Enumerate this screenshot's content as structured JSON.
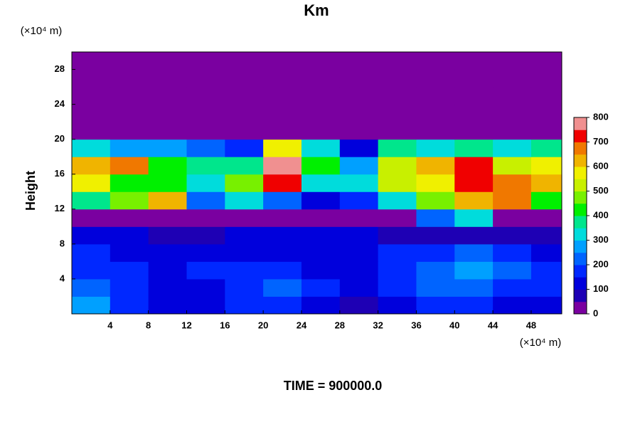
{
  "chart_data": {
    "type": "heatmap",
    "title": "Km",
    "y_label": "Height",
    "y_unit": "(×10⁴ m)",
    "x_unit": "(×10⁴ m)",
    "footer": "TIME = 900000.0",
    "xlim": [
      0,
      51.2
    ],
    "ylim": [
      0,
      30
    ],
    "xticks": [
      4,
      8,
      12,
      16,
      20,
      24,
      28,
      32,
      36,
      40,
      44,
      48
    ],
    "yticks": [
      4,
      8,
      12,
      16,
      20,
      24,
      28
    ],
    "x_edges": [
      0,
      4,
      8,
      12,
      16,
      20,
      24,
      28,
      32,
      36,
      40,
      44,
      48,
      51.2
    ],
    "y_edges": [
      0,
      2,
      4,
      6,
      8,
      10,
      12,
      14,
      16,
      18,
      20,
      22,
      24,
      26,
      28,
      30
    ],
    "z": [
      [
        250,
        150,
        100,
        100,
        150,
        150,
        100,
        50,
        100,
        150,
        150,
        100,
        100
      ],
      [
        200,
        150,
        100,
        100,
        150,
        200,
        150,
        100,
        150,
        200,
        200,
        150,
        150
      ],
      [
        150,
        150,
        100,
        150,
        150,
        150,
        100,
        100,
        150,
        200,
        250,
        200,
        150
      ],
      [
        150,
        100,
        100,
        100,
        100,
        100,
        100,
        100,
        150,
        150,
        200,
        150,
        100
      ],
      [
        100,
        100,
        50,
        50,
        100,
        100,
        100,
        100,
        50,
        50,
        50,
        50,
        50
      ],
      [
        0,
        0,
        0,
        0,
        0,
        0,
        0,
        0,
        0,
        200,
        300,
        0,
        0
      ],
      [
        350,
        450,
        600,
        200,
        300,
        200,
        100,
        150,
        300,
        450,
        600,
        650,
        400
      ],
      [
        550,
        400,
        400,
        300,
        450,
        700,
        300,
        300,
        500,
        550,
        700,
        650,
        600
      ],
      [
        600,
        650,
        400,
        350,
        350,
        750,
        400,
        250,
        500,
        600,
        700,
        500,
        550
      ],
      [
        300,
        250,
        250,
        200,
        150,
        550,
        300,
        100,
        350,
        300,
        350,
        300,
        350
      ],
      [
        0,
        0,
        0,
        0,
        0,
        0,
        0,
        0,
        0,
        0,
        0,
        0,
        0
      ],
      [
        0,
        0,
        0,
        0,
        0,
        0,
        0,
        0,
        0,
        0,
        0,
        0,
        0
      ],
      [
        0,
        0,
        0,
        0,
        0,
        0,
        0,
        0,
        0,
        0,
        0,
        0,
        0
      ],
      [
        0,
        0,
        0,
        0,
        0,
        0,
        0,
        0,
        0,
        0,
        0,
        0,
        0
      ],
      [
        0,
        0,
        0,
        0,
        0,
        0,
        0,
        0,
        0,
        0,
        0,
        0,
        0
      ]
    ],
    "levels": [
      0,
      50,
      100,
      150,
      200,
      250,
      300,
      350,
      400,
      450,
      500,
      550,
      600,
      650,
      700,
      750,
      800
    ],
    "colors": [
      "#7a00a0",
      "#1e00b4",
      "#0000dc",
      "#0028ff",
      "#0064ff",
      "#00a0ff",
      "#00dcdc",
      "#00e68c",
      "#00f000",
      "#78f000",
      "#c8f000",
      "#f0f000",
      "#f0b400",
      "#f07800",
      "#f00000",
      "#f09090"
    ],
    "colorbar_ticks": [
      0,
      100,
      200,
      300,
      400,
      500,
      600,
      700,
      800
    ]
  }
}
